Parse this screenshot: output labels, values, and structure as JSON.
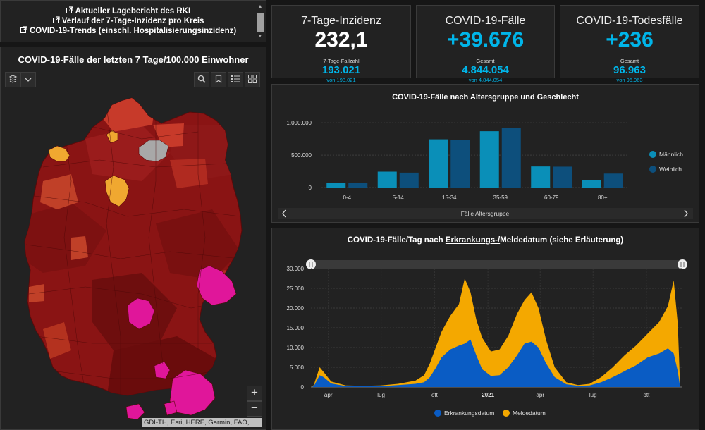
{
  "links": {
    "items": [
      "Aktueller Lagebericht des RKI",
      "Verlauf der 7-Tage-Inzidenz pro Kreis",
      "COVID-19-Trends (einschl. Hospitalisierungsinzidenz)"
    ]
  },
  "map": {
    "title": "COVID-19-Fälle der letzten 7 Tage/100.000 Einwohner",
    "attribution": "GDI-TH, Esri, HERE, Garmin, FAO, ...",
    "zoom_in": "+",
    "zoom_out": "−"
  },
  "stats": {
    "inzidenz": {
      "label": "7-Tage-Inzidenz",
      "value": "232,1",
      "sub_label": "7-Tage-Fallzahl",
      "sub_value": "193.021",
      "von": "von 193.021"
    },
    "faelle": {
      "label": "COVID-19-Fälle",
      "value": "+39.676",
      "sub_label": "Gesamt",
      "sub_value": "4.844.054",
      "von": "von 4.844.054"
    },
    "tode": {
      "label": "COVID-19-Todesfälle",
      "value": "+236",
      "sub_label": "Gesamt",
      "sub_value": "96.963",
      "von": "von 96.963"
    }
  },
  "colors": {
    "cyan": "#00b5e9",
    "male": "#0a8fb8",
    "female": "#0d4f7c",
    "erkrankung": "#0a5cc4",
    "melde": "#f4a800"
  },
  "charts": {
    "age": {
      "title": "COVID-19-Fälle nach Altersgruppe und Geschlecht",
      "xlabel": "Fälle Altersgruppe"
    },
    "time": {
      "title_prefix": "COVID-19-Fälle/Tag nach ",
      "title_underlined": "Erkrankungs-/",
      "title_suffix": "Meldedatum (siehe Erläuterung)"
    }
  },
  "chart_data": [
    {
      "type": "bar",
      "title": "COVID-19-Fälle nach Altersgruppe und Geschlecht",
      "xlabel": "Fälle Altersgruppe",
      "ylabel": "",
      "ylim": [
        0,
        1100000
      ],
      "yticks": [
        0,
        500000,
        1000000
      ],
      "ytick_labels": [
        "0",
        "500.000",
        "1.000.000"
      ],
      "categories": [
        "0-4",
        "5-14",
        "15-34",
        "35-59",
        "60-79",
        "80+"
      ],
      "series": [
        {
          "name": "Männlich",
          "values": [
            75000,
            245000,
            745000,
            870000,
            325000,
            118000
          ]
        },
        {
          "name": "Weiblich",
          "values": [
            70000,
            230000,
            730000,
            920000,
            322000,
            215000
          ]
        }
      ],
      "legend": "right"
    },
    {
      "type": "area",
      "title": "COVID-19-Fälle/Tag nach Erkrankungs-/Meldedatum (siehe Erläuterung)",
      "ylim": [
        0,
        30000
      ],
      "yticks": [
        0,
        5000,
        10000,
        15000,
        20000,
        25000,
        30000
      ],
      "ytick_labels": [
        "0",
        "5.000",
        "10.000",
        "15.000",
        "20.000",
        "25.000",
        "30.000"
      ],
      "x_domain": [
        0,
        640
      ],
      "xticks": [
        {
          "label": "apr",
          "x": 30,
          "bold": false
        },
        {
          "label": "lug",
          "x": 121,
          "bold": false
        },
        {
          "label": "ott",
          "x": 213,
          "bold": false
        },
        {
          "label": "2021",
          "x": 305,
          "bold": true
        },
        {
          "label": "apr",
          "x": 395,
          "bold": false
        },
        {
          "label": "lug",
          "x": 486,
          "bold": false
        },
        {
          "label": "ott",
          "x": 578,
          "bold": false
        }
      ],
      "series": [
        {
          "name": "Erkrankungsdatum",
          "points": [
            [
              0,
              0
            ],
            [
              5,
              200
            ],
            [
              15,
              3000
            ],
            [
              22,
              2500
            ],
            [
              35,
              900
            ],
            [
              60,
              250
            ],
            [
              90,
              200
            ],
            [
              120,
              200
            ],
            [
              150,
              500
            ],
            [
              180,
              800
            ],
            [
              195,
              1200
            ],
            [
              205,
              2500
            ],
            [
              215,
              4800
            ],
            [
              225,
              7500
            ],
            [
              240,
              9500
            ],
            [
              255,
              10500
            ],
            [
              265,
              11000
            ],
            [
              275,
              12000
            ],
            [
              285,
              8000
            ],
            [
              295,
              4500
            ],
            [
              310,
              2800
            ],
            [
              325,
              3000
            ],
            [
              340,
              5000
            ],
            [
              355,
              8000
            ],
            [
              368,
              11000
            ],
            [
              380,
              11500
            ],
            [
              392,
              10000
            ],
            [
              405,
              6000
            ],
            [
              420,
              2500
            ],
            [
              440,
              700
            ],
            [
              460,
              300
            ],
            [
              480,
              400
            ],
            [
              500,
              1200
            ],
            [
              520,
              2500
            ],
            [
              540,
              4000
            ],
            [
              560,
              5500
            ],
            [
              580,
              7500
            ],
            [
              600,
              8500
            ],
            [
              615,
              9800
            ],
            [
              625,
              8500
            ],
            [
              632,
              4000
            ],
            [
              636,
              0
            ],
            [
              640,
              0
            ]
          ]
        },
        {
          "name": "Meldedatum",
          "points": [
            [
              0,
              0
            ],
            [
              5,
              500
            ],
            [
              15,
              5000
            ],
            [
              22,
              3800
            ],
            [
              35,
              1400
            ],
            [
              60,
              400
            ],
            [
              90,
              300
            ],
            [
              120,
              400
            ],
            [
              150,
              800
            ],
            [
              180,
              1600
            ],
            [
              195,
              3000
            ],
            [
              205,
              6000
            ],
            [
              215,
              10000
            ],
            [
              225,
              14000
            ],
            [
              240,
              18000
            ],
            [
              255,
              21000
            ],
            [
              265,
              27500
            ],
            [
              275,
              24000
            ],
            [
              285,
              17000
            ],
            [
              295,
              12500
            ],
            [
              310,
              9000
            ],
            [
              325,
              9500
            ],
            [
              340,
              13000
            ],
            [
              355,
              18500
            ],
            [
              368,
              22000
            ],
            [
              380,
              24000
            ],
            [
              392,
              20000
            ],
            [
              405,
              12000
            ],
            [
              420,
              5000
            ],
            [
              440,
              1200
            ],
            [
              460,
              500
            ],
            [
              480,
              800
            ],
            [
              500,
              2500
            ],
            [
              520,
              5000
            ],
            [
              540,
              8000
            ],
            [
              560,
              10500
            ],
            [
              580,
              13500
            ],
            [
              600,
              16500
            ],
            [
              615,
              20500
            ],
            [
              625,
              27000
            ],
            [
              632,
              16000
            ],
            [
              636,
              0
            ],
            [
              640,
              0
            ]
          ]
        }
      ],
      "legend": "bottom"
    }
  ]
}
